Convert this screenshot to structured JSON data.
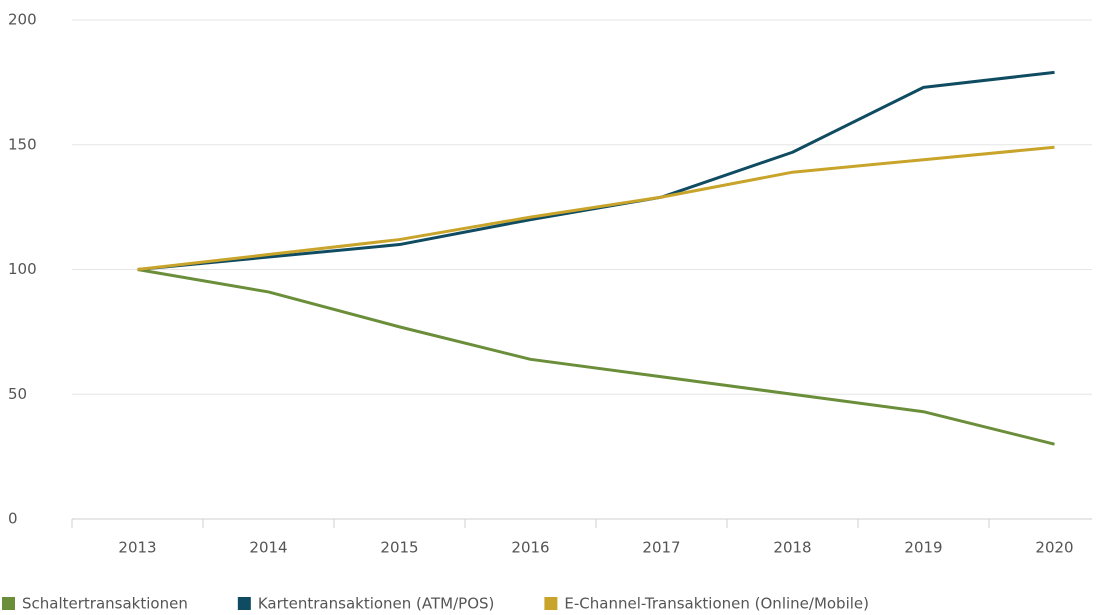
{
  "chart_data": {
    "type": "line",
    "categories": [
      "2013",
      "2014",
      "2015",
      "2016",
      "2017",
      "2018",
      "2019",
      "2020"
    ],
    "series": [
      {
        "name": "Schaltertransaktionen",
        "color": "#6b8e3a",
        "values": [
          100,
          91,
          77,
          64,
          57,
          50,
          43,
          30
        ]
      },
      {
        "name": "Kartentransaktionen (ATM/POS)",
        "color": "#0f4b61",
        "values": [
          100,
          105,
          110,
          120,
          129,
          147,
          173,
          179
        ]
      },
      {
        "name": "E-Channel-Transaktionen (Online/Mobile)",
        "color": "#c9a42b",
        "values": [
          100,
          106,
          112,
          121,
          129,
          139,
          144,
          149
        ]
      }
    ],
    "ylim": [
      0,
      200
    ],
    "yticks": [
      0,
      50,
      100,
      150,
      200
    ],
    "grid": true,
    "legend": "bottom-left"
  }
}
